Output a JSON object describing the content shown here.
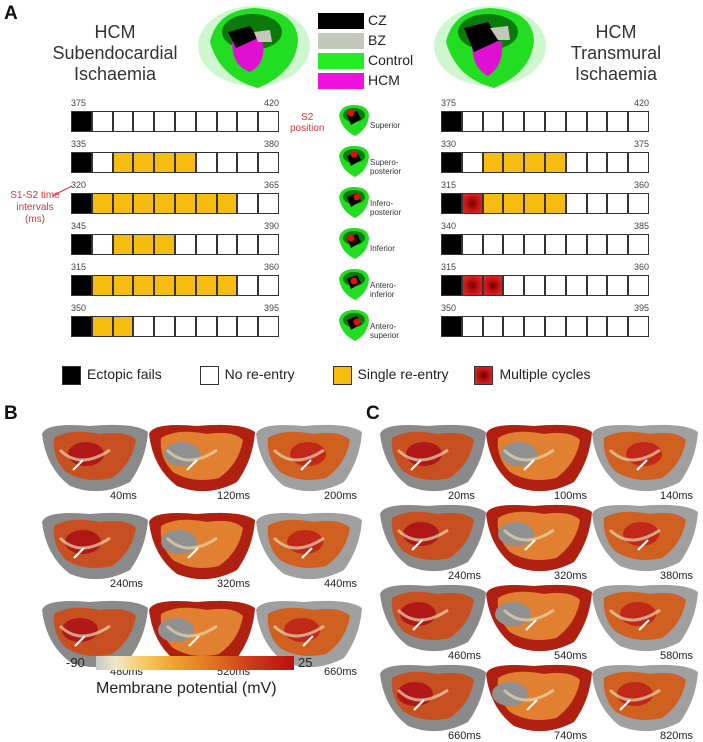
{
  "panels": {
    "a": "A",
    "b": "B",
    "c": "C"
  },
  "titles": {
    "left": [
      "HCM",
      "Subendocardial",
      "Ischaemia"
    ],
    "right": [
      "HCM",
      "Transmural",
      "Ischaemia"
    ]
  },
  "region_legend": [
    {
      "label": "CZ",
      "color": "#000000"
    },
    {
      "label": "BZ",
      "color": "#c3c8bb"
    },
    {
      "label": "Control",
      "color": "#22ee22"
    },
    {
      "label": "HCM",
      "color": "#ee11dd"
    }
  ],
  "annotations": {
    "s1s2": [
      "S1-S2 time",
      "intervals",
      "(ms)"
    ],
    "s2pos": [
      "S2",
      "position"
    ]
  },
  "left_rows": [
    {
      "start": "375",
      "end": "420",
      "cells": "f........."
    },
    {
      "start": "335",
      "end": "380",
      "cells": "f.ssss...."
    },
    {
      "start": "320",
      "end": "365",
      "cells": "fsssssss.."
    },
    {
      "start": "345",
      "end": "390",
      "cells": "f.sss....."
    },
    {
      "start": "315",
      "end": "360",
      "cells": "fsssssss.."
    },
    {
      "start": "350",
      "end": "395",
      "cells": "fss......."
    }
  ],
  "right_rows": [
    {
      "start": "375",
      "end": "420",
      "cells": "f........."
    },
    {
      "start": "330",
      "end": "375",
      "cells": "f.ssss...."
    },
    {
      "start": "315",
      "end": "360",
      "cells": "fmssss...."
    },
    {
      "start": "340",
      "end": "385",
      "cells": "f........."
    },
    {
      "start": "315",
      "end": "360",
      "cells": "fmm......."
    },
    {
      "start": "350",
      "end": "395",
      "cells": "f........."
    }
  ],
  "positions": [
    [
      "Superior"
    ],
    [
      "Supero-",
      "posterior"
    ],
    [
      "Infero-",
      "posterior"
    ],
    [
      "Inferior"
    ],
    [
      "Antero-",
      "inferior"
    ],
    [
      "Antero-",
      "superior"
    ]
  ],
  "outcome_legend": [
    {
      "label": "Ectopic fails",
      "color": "#000000"
    },
    {
      "label": "No re-entry",
      "color": "#ffffff"
    },
    {
      "label": "Single re-entry",
      "color": "#f7bc10"
    },
    {
      "label": "Multiple cycles",
      "color": "#c41010"
    }
  ],
  "b_times": [
    "40ms",
    "120ms",
    "200ms",
    "240ms",
    "320ms",
    "440ms",
    "480ms",
    "520ms",
    "660ms"
  ],
  "c_times": [
    "20ms",
    "100ms",
    "140ms",
    "240ms",
    "320ms",
    "380ms",
    "460ms",
    "540ms",
    "580ms",
    "660ms",
    "740ms",
    "820ms"
  ],
  "colorbar": {
    "min": "-90",
    "max": "25",
    "label": "Membrane potential (mV)"
  }
}
